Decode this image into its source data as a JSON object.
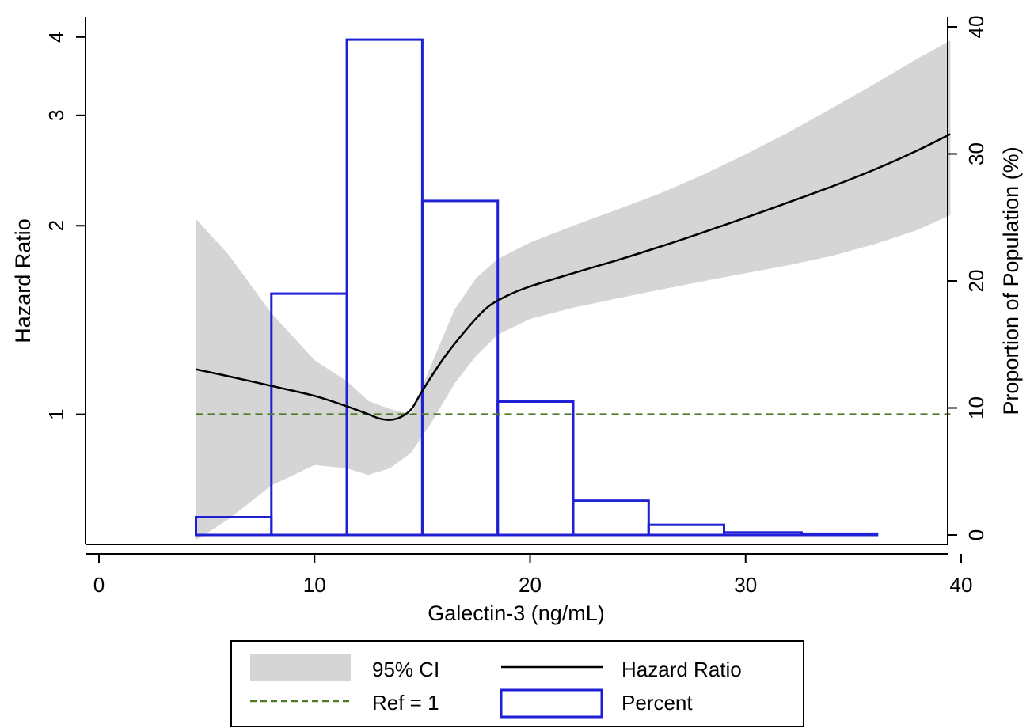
{
  "chart_data": {
    "type": "line",
    "title": "",
    "xlabel": "Galectin-3 (ng/mL)",
    "ylabel": "Hazard Ratio",
    "y2label": "Proportion of Population (%)",
    "xlim": [
      0,
      40
    ],
    "ylim": [
      0.62,
      4.3
    ],
    "yscale": "log",
    "y2lim": [
      0,
      40
    ],
    "xticks": [
      "0",
      "10",
      "20",
      "30",
      "40"
    ],
    "yticks": [
      "1",
      "2",
      "3",
      "4"
    ],
    "y2ticks": [
      "0",
      "10",
      "20",
      "30",
      "40"
    ],
    "grid": false,
    "legend_position": "bottom",
    "series": [
      {
        "name": "Hazard Ratio",
        "kind": "line",
        "color": "#000000",
        "x": [
          4.5,
          6,
          8,
          10,
          11.5,
          12.5,
          13,
          13.5,
          14,
          14.5,
          15,
          16,
          17,
          18,
          19,
          20,
          22,
          24,
          26,
          28,
          30,
          32,
          34,
          36,
          38,
          39.5
        ],
        "y": [
          1.18,
          1.15,
          1.11,
          1.07,
          1.03,
          1.0,
          0.985,
          0.98,
          0.99,
          1.02,
          1.09,
          1.23,
          1.36,
          1.48,
          1.55,
          1.6,
          1.68,
          1.76,
          1.85,
          1.95,
          2.06,
          2.18,
          2.31,
          2.46,
          2.64,
          2.8
        ]
      },
      {
        "name": "95% CI",
        "kind": "band",
        "color": "#d5d5d5",
        "x": [
          4.5,
          6,
          8,
          10,
          11.5,
          12.5,
          13.5,
          14.5,
          15.5,
          16.5,
          17.5,
          18.5,
          20,
          22,
          24,
          26,
          28,
          30,
          32,
          34,
          36,
          38,
          39.5
        ],
        "lower": [
          0.63,
          0.68,
          0.77,
          0.83,
          0.82,
          0.8,
          0.82,
          0.87,
          0.98,
          1.12,
          1.24,
          1.34,
          1.42,
          1.48,
          1.53,
          1.58,
          1.63,
          1.68,
          1.73,
          1.79,
          1.87,
          1.97,
          2.08
        ],
        "upper": [
          2.05,
          1.8,
          1.45,
          1.22,
          1.13,
          1.05,
          1.02,
          1.0,
          1.22,
          1.47,
          1.65,
          1.77,
          1.88,
          2.0,
          2.12,
          2.25,
          2.41,
          2.6,
          2.82,
          3.08,
          3.37,
          3.7,
          3.95
        ]
      },
      {
        "name": "Ref = 1",
        "kind": "reference",
        "color": "#4f7a28",
        "y": 1
      },
      {
        "name": "Percent",
        "kind": "histogram",
        "axis": "right",
        "color": "#1f1fd6",
        "bins": [
          [
            4.5,
            8.0
          ],
          [
            8.0,
            11.5
          ],
          [
            11.5,
            15.0
          ],
          [
            15.0,
            18.5
          ],
          [
            18.5,
            22.0
          ],
          [
            22.0,
            25.5
          ],
          [
            25.5,
            29.0
          ],
          [
            29.0,
            32.6
          ],
          [
            32.6,
            36.1
          ],
          [
            36.1,
            39.5
          ]
        ],
        "values": [
          1.4,
          19.0,
          39.0,
          26.3,
          10.5,
          2.7,
          0.8,
          0.2,
          0.1,
          0.0
        ]
      }
    ],
    "legend": [
      {
        "label": "95% CI",
        "swatch": "band"
      },
      {
        "label": "Hazard Ratio",
        "swatch": "line"
      },
      {
        "label": "Ref = 1",
        "swatch": "dash"
      },
      {
        "label": "Percent",
        "swatch": "box"
      }
    ]
  }
}
